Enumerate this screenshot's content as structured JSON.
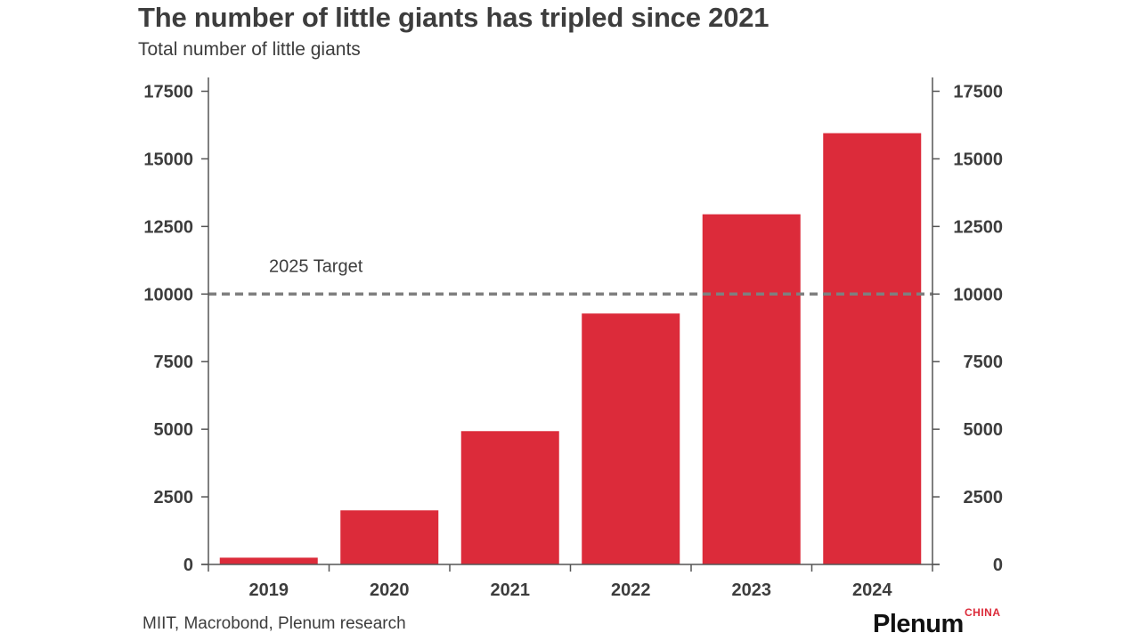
{
  "title": "The number of little giants has tripled since 2021",
  "subtitle": "Total number of little giants",
  "source": "MIIT, Macrobond, Plenum research",
  "logo": {
    "wordmark": "Plenum",
    "sub": "CHINA"
  },
  "colors": {
    "bar": "#dc2b3a",
    "axis": "#555555",
    "target_line": "#7f7f7f",
    "text": "#3d3d3d"
  },
  "chart_data": {
    "type": "bar",
    "categories": [
      "2019",
      "2020",
      "2021",
      "2022",
      "2023",
      "2024"
    ],
    "values": [
      250,
      2000,
      4930,
      9280,
      12950,
      15950
    ],
    "ylim": [
      0,
      17500
    ],
    "yticks": [
      0,
      2500,
      5000,
      7500,
      10000,
      12500,
      15000,
      17500
    ],
    "ytick_labels": [
      "0",
      "2500",
      "5000",
      "7500",
      "10000",
      "12500",
      "15000",
      "17500"
    ],
    "axes": "left and right",
    "grid": false,
    "legend": "none",
    "target": {
      "value": 10000,
      "label": "2025 Target"
    }
  }
}
